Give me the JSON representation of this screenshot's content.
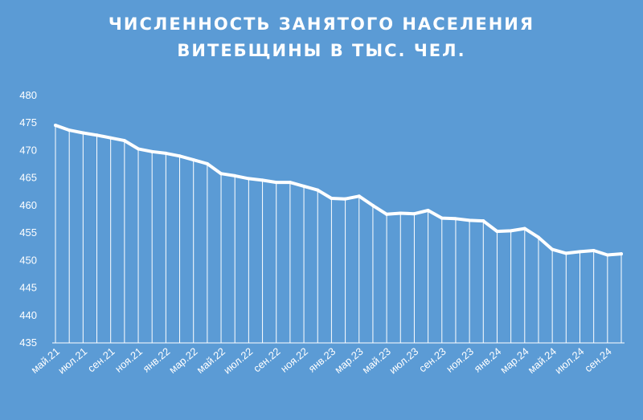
{
  "chart_data": {
    "type": "line",
    "title_lines": [
      "ЧИСЛЕННОСТЬ ЗАНЯТОГО НАСЕЛЕНИЯ",
      "ВИТЕБЩИНЫ В ТЫС. ЧЕЛ."
    ],
    "xlabel": "",
    "ylabel": "",
    "ylim": [
      435,
      480
    ],
    "yticks": [
      435,
      440,
      445,
      450,
      455,
      460,
      465,
      470,
      475,
      480
    ],
    "grid": false,
    "drop_lines": true,
    "colors": {
      "background": "#5b9bd5",
      "line": "#ffffff"
    },
    "x": [
      "май.21",
      "июн.21",
      "июл.21",
      "авг.21",
      "сен.21",
      "окт.21",
      "ноя.21",
      "дек.21",
      "янв.22",
      "фев.22",
      "мар.22",
      "апр.22",
      "май.22",
      "июн.22",
      "июл.22",
      "авг.22",
      "сен.22",
      "окт.22",
      "ноя.22",
      "дек.22",
      "янв.23",
      "фев.23",
      "мар.23",
      "апр.23",
      "май.23",
      "июн.23",
      "июл.23",
      "авг.23",
      "сен.23",
      "окт.23",
      "ноя.23",
      "дек.23",
      "янв.24",
      "фев.24",
      "мар.24",
      "апр.24",
      "май.24",
      "июн.24",
      "июл.24",
      "авг.24",
      "сен.24",
      "окт.24"
    ],
    "x_tick_labels": [
      "май.21",
      "",
      "июл.21",
      "",
      "сен.21",
      "",
      "ноя.21",
      "",
      "янв.22",
      "",
      "мар.22",
      "",
      "май.22",
      "",
      "июл.22",
      "",
      "сен.22",
      "",
      "ноя.22",
      "",
      "янв.23",
      "",
      "мар.23",
      "",
      "май.23",
      "",
      "июл.23",
      "",
      "сен.23",
      "",
      "ноя.23",
      "",
      "янв.24",
      "",
      "мар.24",
      "",
      "май.24",
      "",
      "июл.24",
      "",
      "сен.24",
      ""
    ],
    "values": [
      474.6,
      473.7,
      473.2,
      472.8,
      472.3,
      471.8,
      470.3,
      469.8,
      469.5,
      469.0,
      468.3,
      467.6,
      465.8,
      465.4,
      464.9,
      464.6,
      464.2,
      464.2,
      463.5,
      462.8,
      461.3,
      461.2,
      461.7,
      460.0,
      458.4,
      458.6,
      458.5,
      459.1,
      457.7,
      457.6,
      457.3,
      457.2,
      455.3,
      455.4,
      455.8,
      454.2,
      452.0,
      451.3,
      451.6,
      451.8,
      451.0,
      451.2
    ]
  }
}
